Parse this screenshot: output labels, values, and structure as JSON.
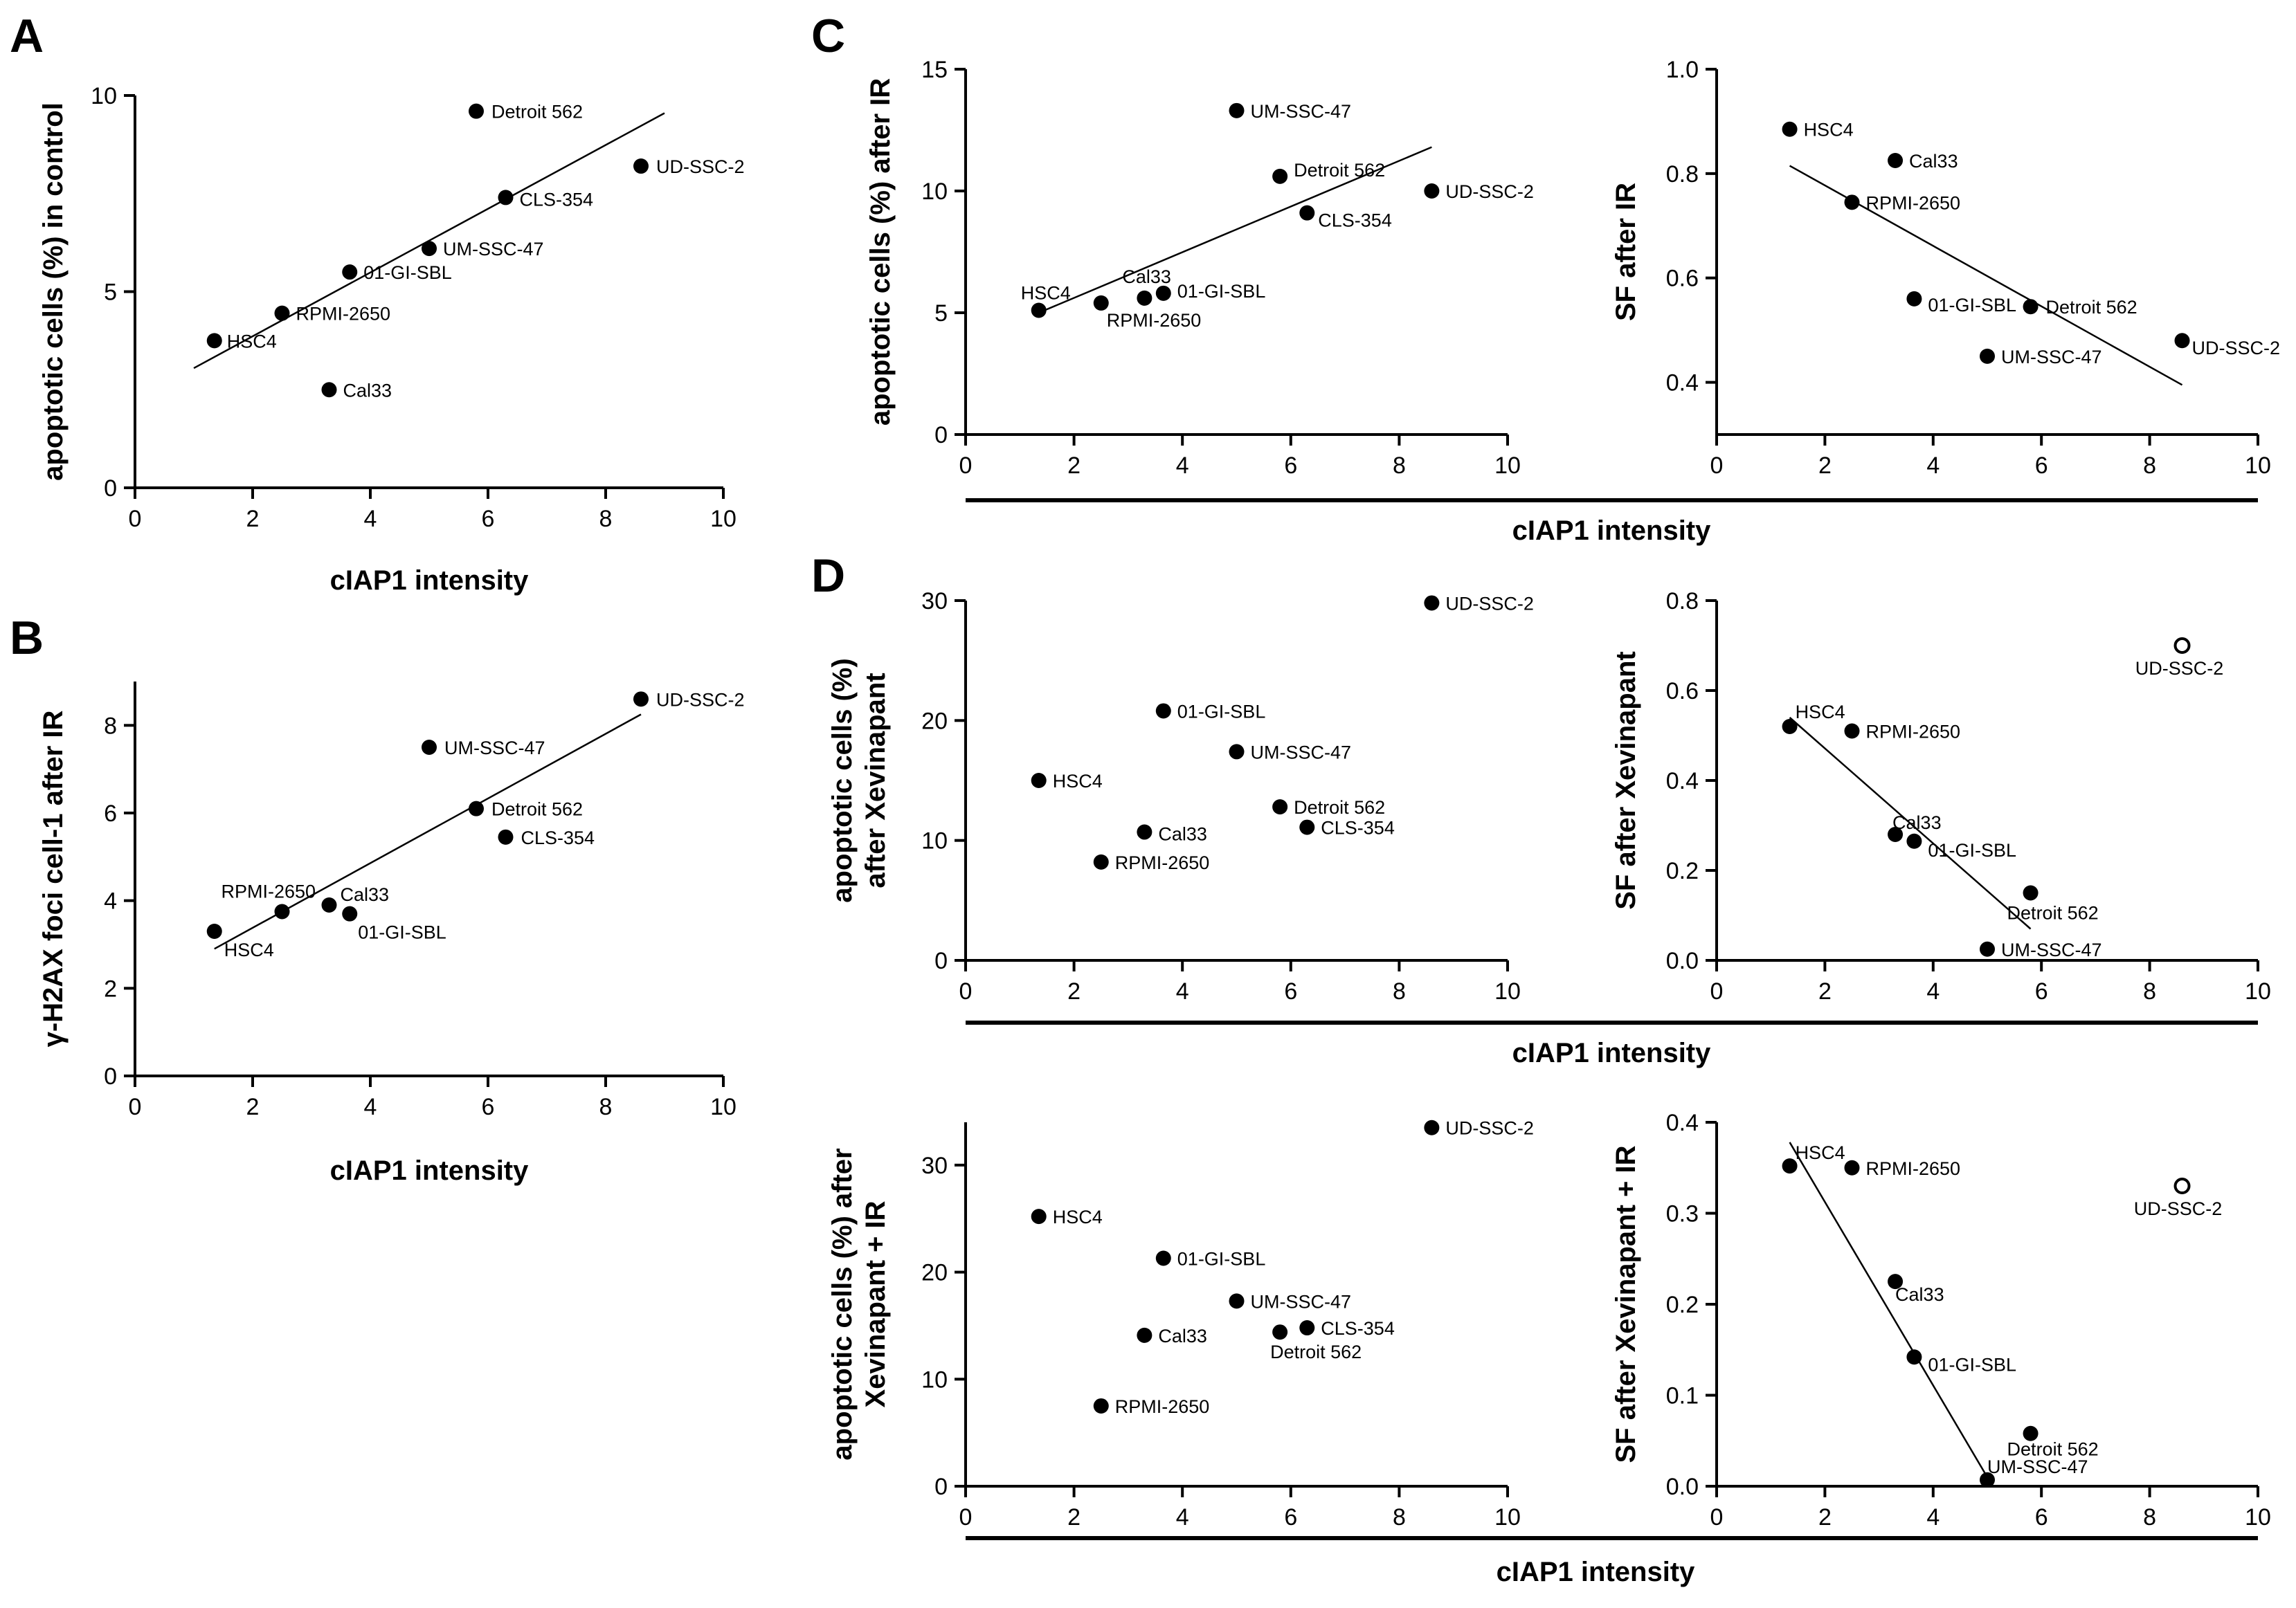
{
  "panel_letters": {
    "a": "A",
    "b": "B",
    "c": "C",
    "d": "D"
  },
  "shared_xlabel": "cIAP1 intensity",
  "chart_data": [
    {
      "id": "A",
      "type": "scatter",
      "title": "",
      "xlabel": "cIAP1 intensity",
      "ylabel": "apoptotic cells (%) in control",
      "xlim": [
        0,
        10
      ],
      "ylim": [
        0,
        10
      ],
      "xticks": [
        0,
        2,
        4,
        6,
        8,
        10
      ],
      "yticks": [
        0,
        5,
        10
      ],
      "points": [
        {
          "label": "Detroit 562",
          "x": 5.8,
          "y": 9.6
        },
        {
          "label": "UD-SSC-2",
          "x": 8.6,
          "y": 8.2
        },
        {
          "label": "CLS-354",
          "x": 6.3,
          "y": 7.4
        },
        {
          "label": "UM-SSC-47",
          "x": 5.0,
          "y": 6.1
        },
        {
          "label": "01-GI-SBL",
          "x": 3.65,
          "y": 5.5
        },
        {
          "label": "RPMI-2650",
          "x": 2.5,
          "y": 4.45
        },
        {
          "label": "HSC4",
          "x": 1.35,
          "y": 3.75
        },
        {
          "label": "Cal33",
          "x": 3.3,
          "y": 2.5
        }
      ],
      "fit": {
        "x": [
          1.0,
          9.0
        ],
        "y": [
          3.05,
          9.55
        ]
      }
    },
    {
      "id": "B",
      "type": "scatter",
      "title": "",
      "xlabel": "cIAP1 intensity",
      "ylabel": "γ-H2AX foci cell-1 after IR",
      "xlim": [
        0,
        10
      ],
      "ylim": [
        0,
        9
      ],
      "xticks": [
        0,
        2,
        4,
        6,
        8,
        10
      ],
      "yticks": [
        0,
        2,
        4,
        6,
        8
      ],
      "points": [
        {
          "label": "UD-SSC-2",
          "x": 8.6,
          "y": 8.6
        },
        {
          "label": "UM-SSC-47",
          "x": 5.0,
          "y": 7.5
        },
        {
          "label": "Detroit 562",
          "x": 5.8,
          "y": 6.1
        },
        {
          "label": "CLS-354",
          "x": 6.3,
          "y": 5.45
        },
        {
          "label": "RPMI-2650",
          "x": 2.5,
          "y": 3.75
        },
        {
          "label": "Cal33",
          "x": 3.3,
          "y": 3.9
        },
        {
          "label": "01-GI-SBL",
          "x": 3.65,
          "y": 3.7
        },
        {
          "label": "HSC4",
          "x": 1.35,
          "y": 3.3
        }
      ],
      "fit": {
        "x": [
          1.35,
          8.6
        ],
        "y": [
          2.9,
          8.25
        ]
      }
    },
    {
      "id": "C-left",
      "type": "scatter",
      "title": "",
      "xlabel": "",
      "ylabel": "apoptotic cells (%) after IR",
      "xlim": [
        0,
        10
      ],
      "ylim": [
        0,
        15
      ],
      "xticks": [
        0,
        2,
        4,
        6,
        8,
        10
      ],
      "yticks": [
        0,
        5,
        10,
        15
      ],
      "points": [
        {
          "label": "UM-SSC-47",
          "x": 5.0,
          "y": 13.3
        },
        {
          "label": "Detroit 562",
          "x": 5.8,
          "y": 10.6
        },
        {
          "label": "UD-SSC-2",
          "x": 8.6,
          "y": 10.0
        },
        {
          "label": "CLS-354",
          "x": 6.3,
          "y": 9.1
        },
        {
          "label": "HSC4",
          "x": 1.35,
          "y": 5.1
        },
        {
          "label": "Cal33",
          "x": 3.3,
          "y": 5.6
        },
        {
          "label": "01-GI-SBL",
          "x": 3.65,
          "y": 5.8
        },
        {
          "label": "RPMI-2650",
          "x": 2.5,
          "y": 5.4
        }
      ],
      "fit": {
        "x": [
          1.35,
          8.6
        ],
        "y": [
          5.0,
          11.8
        ]
      }
    },
    {
      "id": "C-right",
      "type": "scatter",
      "title": "",
      "xlabel": "",
      "ylabel": "SF after IR",
      "xlim": [
        0,
        10
      ],
      "ylim": [
        0.3,
        1.0
      ],
      "xticks": [
        0,
        2,
        4,
        6,
        8,
        10
      ],
      "yticks": [
        0.4,
        0.6,
        0.8,
        1.0
      ],
      "points": [
        {
          "label": "HSC4",
          "x": 1.35,
          "y": 0.885
        },
        {
          "label": "Cal33",
          "x": 3.3,
          "y": 0.825
        },
        {
          "label": "RPMI-2650",
          "x": 2.5,
          "y": 0.745
        },
        {
          "label": "01-GI-SBL",
          "x": 3.65,
          "y": 0.56
        },
        {
          "label": "Detroit 562",
          "x": 5.8,
          "y": 0.545
        },
        {
          "label": "UM-SSC-47",
          "x": 5.0,
          "y": 0.45
        },
        {
          "label": "UD-SSC-2",
          "x": 8.6,
          "y": 0.48
        }
      ],
      "fit": {
        "x": [
          1.35,
          8.6
        ],
        "y": [
          0.815,
          0.395
        ]
      }
    },
    {
      "id": "D-top-left",
      "type": "scatter",
      "title": "",
      "xlabel": "",
      "ylabel": "apoptotic cells (%) after Xevinapant",
      "xlim": [
        0,
        10
      ],
      "ylim": [
        0,
        30
      ],
      "xticks": [
        0,
        2,
        4,
        6,
        8,
        10
      ],
      "yticks": [
        0,
        10,
        20,
        30
      ],
      "points": [
        {
          "label": "UD-SSC-2",
          "x": 8.6,
          "y": 29.8
        },
        {
          "label": "01-GI-SBL",
          "x": 3.65,
          "y": 20.8
        },
        {
          "label": "UM-SSC-47",
          "x": 5.0,
          "y": 17.4
        },
        {
          "label": "HSC4",
          "x": 1.35,
          "y": 15.0
        },
        {
          "label": "Detroit 562",
          "x": 5.8,
          "y": 12.8
        },
        {
          "label": "CLS-354",
          "x": 6.3,
          "y": 11.1
        },
        {
          "label": "Cal33",
          "x": 3.3,
          "y": 10.7
        },
        {
          "label": "RPMI-2650",
          "x": 2.5,
          "y": 8.2
        }
      ]
    },
    {
      "id": "D-top-right",
      "type": "scatter",
      "title": "",
      "xlabel": "",
      "ylabel": "SF after Xevinapant",
      "xlim": [
        0,
        10
      ],
      "ylim": [
        0,
        0.8
      ],
      "xticks": [
        0,
        2,
        4,
        6,
        8,
        10
      ],
      "yticks": [
        0.0,
        0.2,
        0.4,
        0.6,
        0.8
      ],
      "points": [
        {
          "label": "UD-SSC-2",
          "x": 8.6,
          "y": 0.7,
          "open": true
        },
        {
          "label": "HSC4",
          "x": 1.35,
          "y": 0.52
        },
        {
          "label": "RPMI-2650",
          "x": 2.5,
          "y": 0.51
        },
        {
          "label": "Cal33",
          "x": 3.3,
          "y": 0.28
        },
        {
          "label": "01-GI-SBL",
          "x": 3.65,
          "y": 0.265
        },
        {
          "label": "Detroit 562",
          "x": 5.8,
          "y": 0.15
        },
        {
          "label": "UM-SSC-47",
          "x": 5.0,
          "y": 0.025
        }
      ],
      "fit": {
        "x": [
          1.35,
          5.8
        ],
        "y": [
          0.54,
          0.07
        ]
      }
    },
    {
      "id": "D-bottom-left",
      "type": "scatter",
      "title": "",
      "xlabel": "",
      "ylabel": "apoptotic cells (%) after Xevinapant + IR",
      "xlim": [
        0,
        10
      ],
      "ylim": [
        0,
        34
      ],
      "xticks": [
        0,
        2,
        4,
        6,
        8,
        10
      ],
      "yticks": [
        0,
        10,
        20,
        30
      ],
      "points": [
        {
          "label": "UD-SSC-2",
          "x": 8.6,
          "y": 33.5
        },
        {
          "label": "HSC4",
          "x": 1.35,
          "y": 25.2
        },
        {
          "label": "01-GI-SBL",
          "x": 3.65,
          "y": 21.3
        },
        {
          "label": "UM-SSC-47",
          "x": 5.0,
          "y": 17.3
        },
        {
          "label": "CLS-354",
          "x": 6.3,
          "y": 14.8
        },
        {
          "label": "Detroit 562",
          "x": 5.8,
          "y": 14.4
        },
        {
          "label": "Cal33",
          "x": 3.3,
          "y": 14.1
        },
        {
          "label": "RPMI-2650",
          "x": 2.5,
          "y": 7.5
        }
      ]
    },
    {
      "id": "D-bottom-right",
      "type": "scatter",
      "title": "",
      "xlabel": "",
      "ylabel": "SF after Xevinapant + IR",
      "xlim": [
        0,
        10
      ],
      "ylim": [
        0,
        0.4
      ],
      "xticks": [
        0,
        2,
        4,
        6,
        8,
        10
      ],
      "yticks": [
        0.0,
        0.1,
        0.2,
        0.3,
        0.4
      ],
      "points": [
        {
          "label": "HSC4",
          "x": 1.35,
          "y": 0.352
        },
        {
          "label": "RPMI-2650",
          "x": 2.5,
          "y": 0.35
        },
        {
          "label": "UD-SSC-2",
          "x": 8.6,
          "y": 0.33,
          "open": true
        },
        {
          "label": "Cal33",
          "x": 3.3,
          "y": 0.225
        },
        {
          "label": "01-GI-SBL",
          "x": 3.65,
          "y": 0.142
        },
        {
          "label": "Detroit 562",
          "x": 5.8,
          "y": 0.058
        },
        {
          "label": "UM-SSC-47",
          "x": 5.0,
          "y": 0.007
        }
      ],
      "fit": {
        "x": [
          1.35,
          5.0
        ],
        "y": [
          0.378,
          0.01
        ]
      }
    }
  ]
}
